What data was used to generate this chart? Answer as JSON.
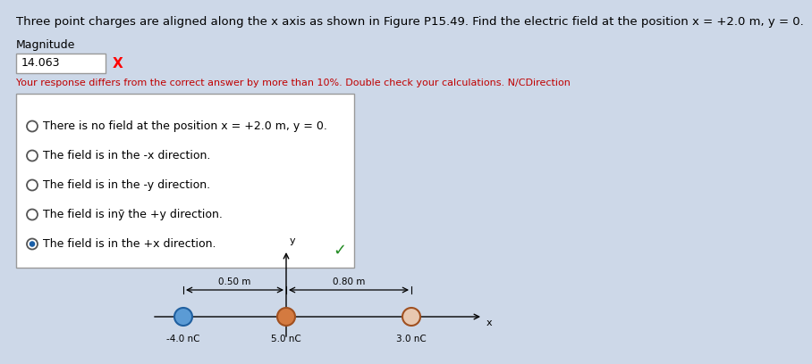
{
  "title_text": "Three point charges are aligned along the x axis as shown in Figure P15.49. Find the electric field at the position x = +2.0 m, y = 0.",
  "magnitude_label": "Magnitude",
  "magnitude_value": "14.063",
  "error_text": "Your response differs from the correct answer by more than 10%. Double check your calculations. N/CDirection",
  "options": [
    "There is no field at the position x = +2.0 m, y = 0.",
    "The field is in the -x direction.",
    "The field is in the -y direction.",
    "The field is inȳ the +y direction.",
    "The field is in the +x direction."
  ],
  "correct_option": 4,
  "charges": [
    {
      "label": "-4.0 nC",
      "color_face": "#5b9bd5",
      "color_edge": "#2060a0"
    },
    {
      "label": "5.0 nC",
      "color_face": "#d47a40",
      "color_edge": "#a05020"
    },
    {
      "label": "3.0 nC",
      "color_face": "#e8c8b0",
      "color_edge": "#a05020"
    }
  ],
  "dim_050": "0.50 m",
  "dim_080": "0.80 m",
  "bg_color": "#cdd8e8",
  "error_color": "#c00000",
  "title_color": "#000000",
  "check_color": "#228B22",
  "box_border": "#999999",
  "radio_color": "#555555",
  "selected_fill": "#1a5fa8",
  "title_fontsize": 9.5,
  "body_fontsize": 9.0,
  "small_fontsize": 8.0
}
